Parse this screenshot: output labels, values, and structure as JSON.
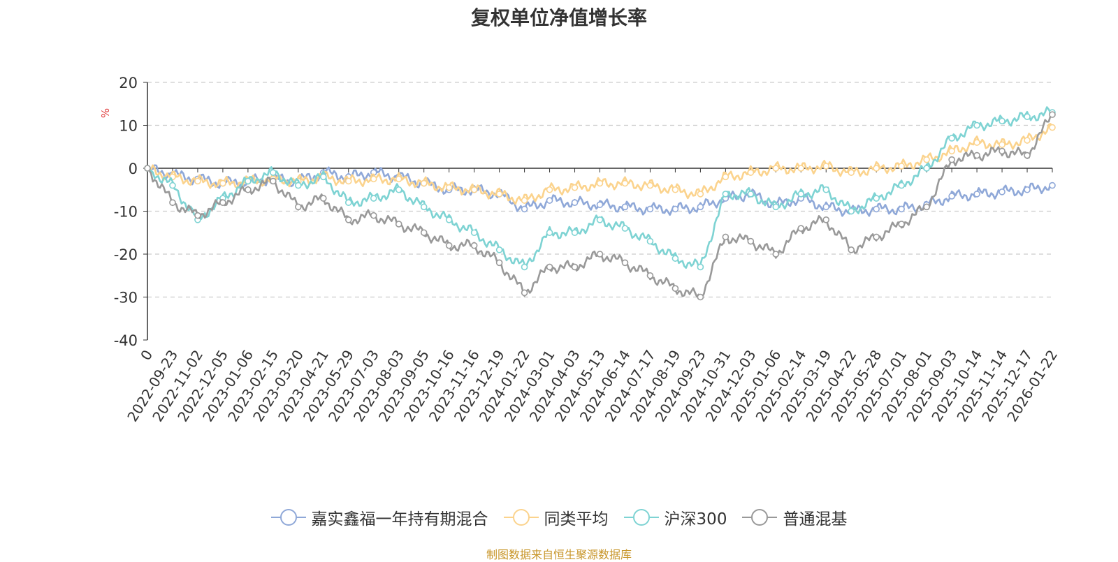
{
  "chart_data": {
    "type": "line",
    "title": "复权单位净值增长率",
    "ylabel": "%",
    "ylim": [
      -40,
      20
    ],
    "yticks": [
      "20",
      "10",
      "0",
      "-10",
      "-20",
      "-30",
      "-40"
    ],
    "categories": [
      "0",
      "2022-09-23",
      "2022-11-02",
      "2022-12-05",
      "2023-01-06",
      "2023-02-15",
      "2023-03-20",
      "2023-04-21",
      "2023-05-29",
      "2023-07-03",
      "2023-08-03",
      "2023-09-05",
      "2023-10-16",
      "2023-11-16",
      "2023-12-19",
      "2024-01-22",
      "2024-03-01",
      "2024-04-03",
      "2024-05-13",
      "2024-06-14",
      "2024-07-17",
      "2024-08-19",
      "2024-09-23",
      "2024-10-31",
      "2024-12-03",
      "2025-01-06",
      "2025-02-14",
      "2025-03-19",
      "2025-04-22",
      "2025-05-28",
      "2025-07-01",
      "2025-08-01",
      "2025-09-03",
      "2025-10-14",
      "2025-11-14",
      "2025-12-17",
      "2026-01-22"
    ],
    "series": [
      {
        "name": "嘉实鑫福一年持有期混合",
        "color": "#8fa8d8",
        "values": [
          0,
          -1.5,
          -2.5,
          -3.5,
          -3,
          -2.5,
          -3,
          -1,
          -2,
          -1,
          -2,
          -3.5,
          -5,
          -5,
          -6,
          -9.5,
          -7.5,
          -8,
          -8.5,
          -9,
          -9.5,
          -9.5,
          -9,
          -7,
          -6,
          -8.5,
          -7,
          -9,
          -10,
          -9.5,
          -9.5,
          -8.5,
          -6.5,
          -6,
          -5.5,
          -5,
          -4
        ]
      },
      {
        "name": "同类平均",
        "color": "#fbd38d",
        "values": [
          0,
          -2,
          -3,
          -3.5,
          -3,
          -2.5,
          -3,
          -2,
          -3,
          -2.5,
          -2.5,
          -3.5,
          -4.5,
          -5,
          -6,
          -7.5,
          -5,
          -4.5,
          -3.5,
          -3.5,
          -4,
          -5,
          -6,
          -2,
          -1,
          0,
          0,
          0.5,
          -1,
          0,
          0.5,
          2,
          4,
          6,
          5.5,
          6.5,
          9.5
        ]
      },
      {
        "name": "沪深300",
        "color": "#7ed3d3",
        "values": [
          0,
          -4,
          -12,
          -7,
          -3,
          -1,
          -4,
          -2,
          -8,
          -7,
          -5,
          -9,
          -12,
          -15,
          -19,
          -23,
          -15,
          -15,
          -12,
          -14,
          -17,
          -21,
          -23,
          -6,
          -6,
          -9,
          -6,
          -5,
          -10,
          -7,
          -4,
          0,
          7,
          10,
          11,
          12,
          13
        ]
      },
      {
        "name": "普通混基",
        "color": "#999999",
        "values": [
          0,
          -8,
          -11,
          -8,
          -5,
          -3,
          -9,
          -7,
          -12,
          -11,
          -13,
          -15,
          -18,
          -18,
          -22,
          -29,
          -23,
          -23,
          -20,
          -22,
          -25,
          -28,
          -30,
          -16,
          -17,
          -20,
          -14,
          -12,
          -19,
          -16,
          -13,
          -9,
          2,
          3,
          4,
          3,
          12.5
        ]
      }
    ]
  },
  "source": "制图数据来自恒生聚源数据库"
}
